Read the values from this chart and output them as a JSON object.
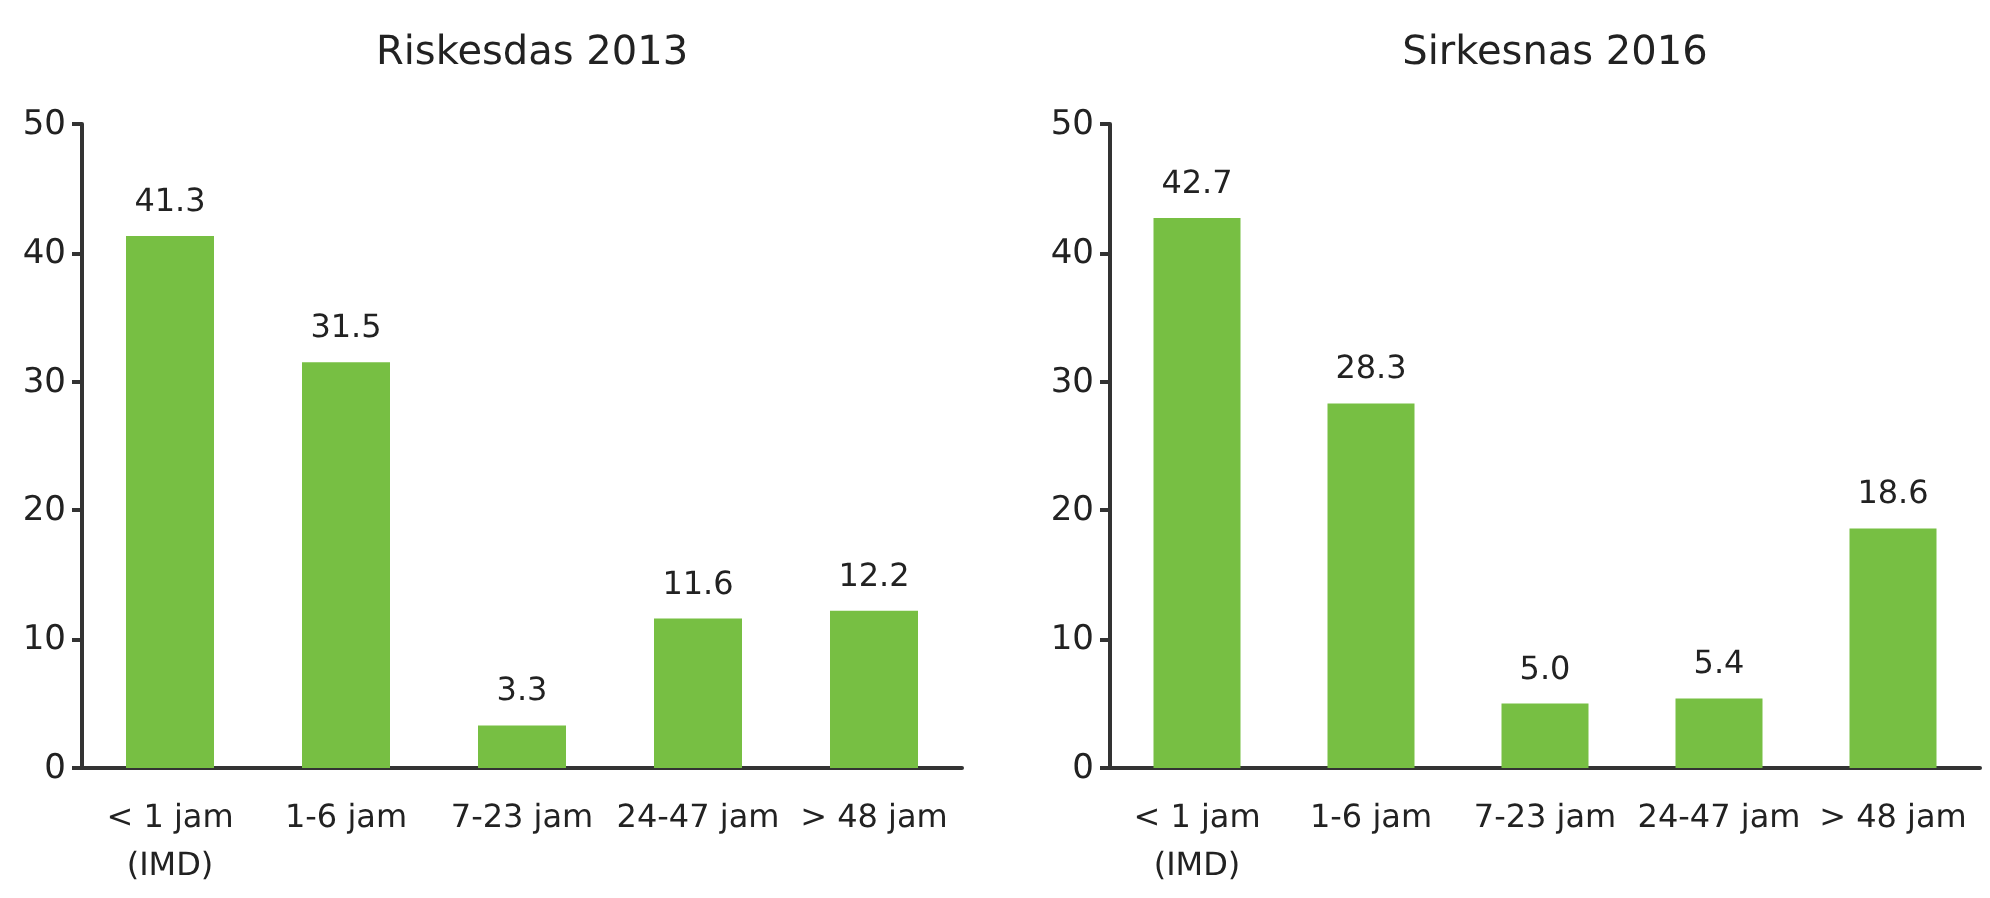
{
  "chart_data": [
    {
      "type": "bar",
      "title": "Riskesdas 2013",
      "categories": [
        "< 1 jam\n(IMD)",
        "1-6 jam",
        "7-23 jam",
        "24-47 jam",
        "> 48 jam"
      ],
      "values": [
        41.3,
        31.5,
        3.3,
        11.6,
        12.2
      ],
      "value_labels": [
        "41.3",
        "31.5",
        "3.3",
        "11.6",
        "12.2"
      ],
      "color": "#77bf43",
      "ylim": [
        0,
        50
      ],
      "yticks": [
        0,
        10,
        20,
        30,
        40,
        50
      ]
    },
    {
      "type": "bar",
      "title": "Sirkesnas 2016",
      "categories": [
        "< 1 jam\n(IMD)",
        "1-6 jam",
        "7-23 jam",
        "24-47 jam",
        "> 48 jam"
      ],
      "values": [
        42.7,
        28.3,
        5.0,
        5.4,
        18.6
      ],
      "value_labels": [
        "42.7",
        "28.3",
        "5.0",
        "5.4",
        "18.6"
      ],
      "color": "#77bf43",
      "ylim": [
        0,
        50
      ],
      "yticks": [
        0,
        10,
        20,
        30,
        40,
        50
      ]
    }
  ]
}
